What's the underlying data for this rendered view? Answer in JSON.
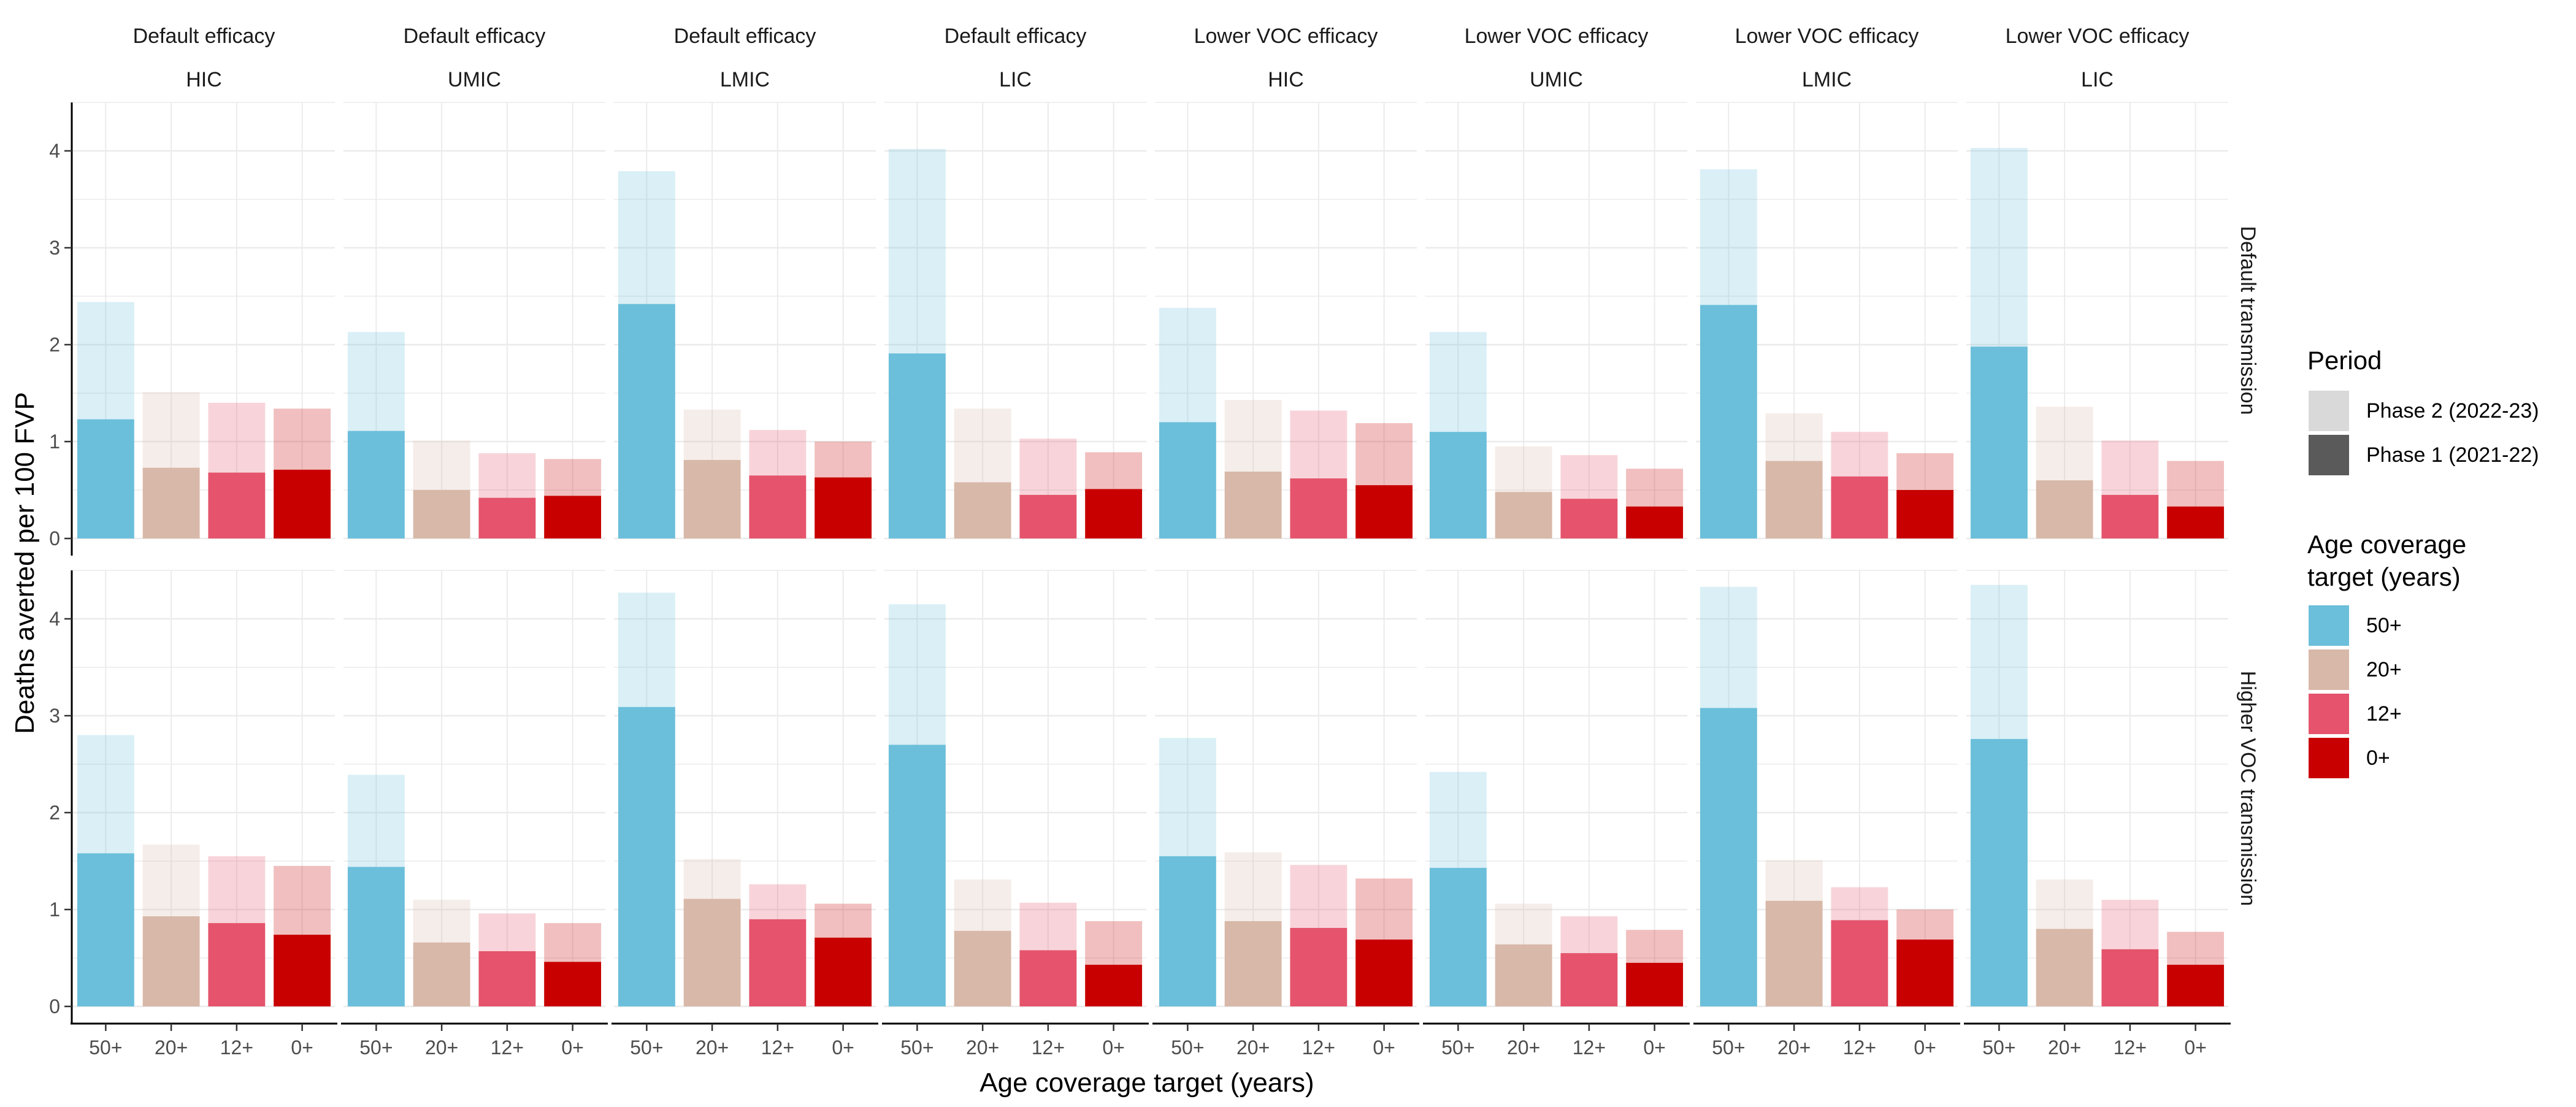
{
  "chart_data": {
    "type": "bar",
    "ylabel": "Deaths averted per 100 FVP",
    "xlabel": "Age coverage target (years)",
    "categories": [
      "50+",
      "20+",
      "12+",
      "0+"
    ],
    "ylim": [
      0,
      4.5
    ],
    "y_ticks": [
      0,
      1,
      2,
      3,
      4
    ],
    "grid": true,
    "stacked": true,
    "column_facets": [
      {
        "efficacy": "Default efficacy",
        "income": "HIC"
      },
      {
        "efficacy": "Default efficacy",
        "income": "UMIC"
      },
      {
        "efficacy": "Default efficacy",
        "income": "LMIC"
      },
      {
        "efficacy": "Default efficacy",
        "income": "LIC"
      },
      {
        "efficacy": "Lower VOC efficacy",
        "income": "HIC"
      },
      {
        "efficacy": "Lower VOC efficacy",
        "income": "UMIC"
      },
      {
        "efficacy": "Lower VOC efficacy",
        "income": "LMIC"
      },
      {
        "efficacy": "Lower VOC efficacy",
        "income": "LIC"
      }
    ],
    "row_facets": [
      "Default transmission",
      "Higher VOC transmission"
    ],
    "colors": {
      "50+": "#6BBFDA",
      "20+": "#D8B8A8",
      "12+": "#E5546C",
      "0+": "#C80000",
      "grid": "#EBEBEB",
      "axis": "#000000",
      "tick_text": "#4D4D4D"
    },
    "panels": [
      {
        "row": 0,
        "col": 0,
        "phase1": [
          1.23,
          0.73,
          0.68,
          0.71
        ],
        "total": [
          2.44,
          1.51,
          1.4,
          1.34
        ]
      },
      {
        "row": 0,
        "col": 1,
        "phase1": [
          1.11,
          0.5,
          0.42,
          0.44
        ],
        "total": [
          2.13,
          1.01,
          0.88,
          0.82
        ]
      },
      {
        "row": 0,
        "col": 2,
        "phase1": [
          2.42,
          0.81,
          0.65,
          0.63
        ],
        "total": [
          3.79,
          1.33,
          1.12,
          1.0
        ]
      },
      {
        "row": 0,
        "col": 3,
        "phase1": [
          1.91,
          0.58,
          0.45,
          0.51
        ],
        "total": [
          4.02,
          1.34,
          1.03,
          0.89
        ]
      },
      {
        "row": 0,
        "col": 4,
        "phase1": [
          1.2,
          0.69,
          0.62,
          0.55
        ],
        "total": [
          2.38,
          1.43,
          1.32,
          1.19
        ]
      },
      {
        "row": 0,
        "col": 5,
        "phase1": [
          1.1,
          0.48,
          0.41,
          0.33
        ],
        "total": [
          2.13,
          0.95,
          0.86,
          0.72
        ]
      },
      {
        "row": 0,
        "col": 6,
        "phase1": [
          2.41,
          0.8,
          0.64,
          0.5
        ],
        "total": [
          3.81,
          1.29,
          1.1,
          0.88
        ]
      },
      {
        "row": 0,
        "col": 7,
        "phase1": [
          1.98,
          0.6,
          0.45,
          0.33
        ],
        "total": [
          4.03,
          1.36,
          1.01,
          0.8
        ]
      },
      {
        "row": 1,
        "col": 0,
        "phase1": [
          1.58,
          0.93,
          0.86,
          0.74
        ],
        "total": [
          2.8,
          1.67,
          1.55,
          1.45
        ]
      },
      {
        "row": 1,
        "col": 1,
        "phase1": [
          1.44,
          0.66,
          0.57,
          0.46
        ],
        "total": [
          2.39,
          1.1,
          0.96,
          0.86
        ]
      },
      {
        "row": 1,
        "col": 2,
        "phase1": [
          3.09,
          1.11,
          0.9,
          0.71
        ],
        "total": [
          4.27,
          1.52,
          1.26,
          1.06
        ]
      },
      {
        "row": 1,
        "col": 3,
        "phase1": [
          2.7,
          0.78,
          0.58,
          0.43
        ],
        "total": [
          4.15,
          1.31,
          1.07,
          0.88
        ]
      },
      {
        "row": 1,
        "col": 4,
        "phase1": [
          1.55,
          0.88,
          0.81,
          0.69
        ],
        "total": [
          2.77,
          1.59,
          1.46,
          1.32
        ]
      },
      {
        "row": 1,
        "col": 5,
        "phase1": [
          1.43,
          0.64,
          0.55,
          0.45
        ],
        "total": [
          2.42,
          1.06,
          0.93,
          0.79
        ]
      },
      {
        "row": 1,
        "col": 6,
        "phase1": [
          3.08,
          1.09,
          0.89,
          0.69
        ],
        "total": [
          4.33,
          1.51,
          1.23,
          1.0
        ]
      },
      {
        "row": 1,
        "col": 7,
        "phase1": [
          2.76,
          0.8,
          0.59,
          0.43
        ],
        "total": [
          4.35,
          1.31,
          1.1,
          0.77
        ]
      }
    ],
    "legend": {
      "placement": "right",
      "period_title": "Period",
      "period_items": [
        {
          "label": "Phase 2 (2022-23)",
          "color": "#D9D9D9"
        },
        {
          "label": "Phase 1 (2021-22)",
          "color": "#5A5A5A"
        }
      ],
      "age_title_line1": "Age coverage",
      "age_title_line2": "target (years)",
      "age_items": [
        {
          "label": "50+",
          "color": "#6BBFDA"
        },
        {
          "label": "20+",
          "color": "#D8B8A8"
        },
        {
          "label": "12+",
          "color": "#E5546C"
        },
        {
          "label": "0+",
          "color": "#C80000"
        }
      ]
    }
  }
}
